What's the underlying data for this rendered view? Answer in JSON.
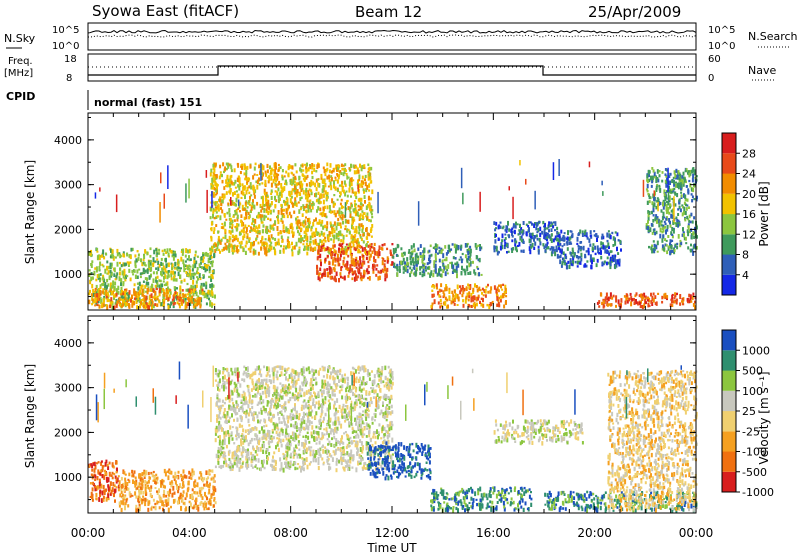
{
  "header": {
    "title": "Syowa East (fitACF)",
    "beam": "Beam 12",
    "date": "25/Apr/2009"
  },
  "strip_panels": {
    "nsky_label": "N.Sky",
    "nsearch_label": "N.Search",
    "nsky_ticks": [
      "10^5",
      "10^0"
    ],
    "nsearch_ticks": [
      "10^5",
      "10^0"
    ],
    "freq_label_line1": "Freq.",
    "freq_label_line2": "[MHz]",
    "freq_ticks": [
      "18",
      "8"
    ],
    "nave_label": "Nave",
    "nave_ticks": [
      "60",
      "0"
    ],
    "cpid_label": "CPID",
    "cpid_value": "normal (fast) 151"
  },
  "colors": {
    "power": [
      "#1428e6",
      "#2f5fb8",
      "#3f9a5c",
      "#8cc63f",
      "#f2c200",
      "#f28c00",
      "#e84a1a",
      "#d81e1e"
    ],
    "velocity": [
      "#d81e1e",
      "#f07010",
      "#f5a020",
      "#f0d070",
      "#c8c8be",
      "#8cc63f",
      "#2f8f6f",
      "#1a4fc0"
    ]
  },
  "chart_data": [
    {
      "type": "heatmap",
      "name": "power-panel",
      "xlabel": "Time UT",
      "ylabel": "Slant Range [km]",
      "xlim": [
        0,
        24
      ],
      "ylim": [
        200,
        4600
      ],
      "x_ticks": [
        "00:00",
        "04:00",
        "08:00",
        "12:00",
        "16:00",
        "20:00",
        "00:00"
      ],
      "y_ticks": [
        "1000",
        "2000",
        "3000",
        "4000"
      ],
      "colorbar_label": "Power [dB]",
      "colorbar_ticks": [
        "4",
        "8",
        "12",
        "16",
        "20",
        "24",
        "28"
      ],
      "regions": [
        {
          "t": [
            0.0,
            5.0
          ],
          "r": [
            300,
            1600
          ],
          "level": 3
        },
        {
          "t": [
            0.0,
            4.5
          ],
          "r": [
            300,
            700
          ],
          "level": 5
        },
        {
          "t": [
            4.8,
            11.2
          ],
          "r": [
            1500,
            3500
          ],
          "level": 4
        },
        {
          "t": [
            9.0,
            12.0
          ],
          "r": [
            900,
            1700
          ],
          "level": 6
        },
        {
          "t": [
            12.0,
            15.5
          ],
          "r": [
            1000,
            1700
          ],
          "level": 2
        },
        {
          "t": [
            13.5,
            16.5
          ],
          "r": [
            300,
            800
          ],
          "level": 5
        },
        {
          "t": [
            16.0,
            18.5
          ],
          "r": [
            1500,
            2200
          ],
          "level": 1
        },
        {
          "t": [
            18.5,
            21.0
          ],
          "r": [
            1200,
            2000
          ],
          "level": 1
        },
        {
          "t": [
            20.0,
            24.0
          ],
          "r": [
            300,
            600
          ],
          "level": 6
        },
        {
          "t": [
            22.0,
            24.0
          ],
          "r": [
            1500,
            3400
          ],
          "level": 2
        }
      ]
    },
    {
      "type": "heatmap",
      "name": "velocity-panel",
      "xlabel": "Time UT",
      "ylabel": "Slant Range [km]",
      "xlim": [
        0,
        24
      ],
      "ylim": [
        200,
        4600
      ],
      "x_ticks": [
        "00:00",
        "04:00",
        "08:00",
        "12:00",
        "16:00",
        "20:00",
        "00:00"
      ],
      "y_ticks": [
        "1000",
        "2000",
        "3000",
        "4000"
      ],
      "colorbar_label": "Velocity [m s⁻¹]",
      "colorbar_ticks": [
        "1000",
        "500",
        "100",
        "25",
        "-25",
        "-100",
        "-500",
        "-1000"
      ],
      "regions": [
        {
          "t": [
            0.0,
            1.2
          ],
          "r": [
            500,
            1400
          ],
          "level": 1
        },
        {
          "t": [
            1.2,
            5.0
          ],
          "r": [
            300,
            1200
          ],
          "level": 2
        },
        {
          "t": [
            5.0,
            12.0
          ],
          "r": [
            1200,
            3500
          ],
          "level": 4
        },
        {
          "t": [
            11.0,
            13.5
          ],
          "r": [
            1000,
            1800
          ],
          "level": 7
        },
        {
          "t": [
            13.5,
            17.5
          ],
          "r": [
            300,
            800
          ],
          "level": 6
        },
        {
          "t": [
            16.0,
            19.5
          ],
          "r": [
            1800,
            2300
          ],
          "level": 4
        },
        {
          "t": [
            18.0,
            24.0
          ],
          "r": [
            300,
            700
          ],
          "level": 6
        },
        {
          "t": [
            20.5,
            24.0
          ],
          "r": [
            300,
            3400
          ],
          "level": 3
        }
      ]
    }
  ]
}
